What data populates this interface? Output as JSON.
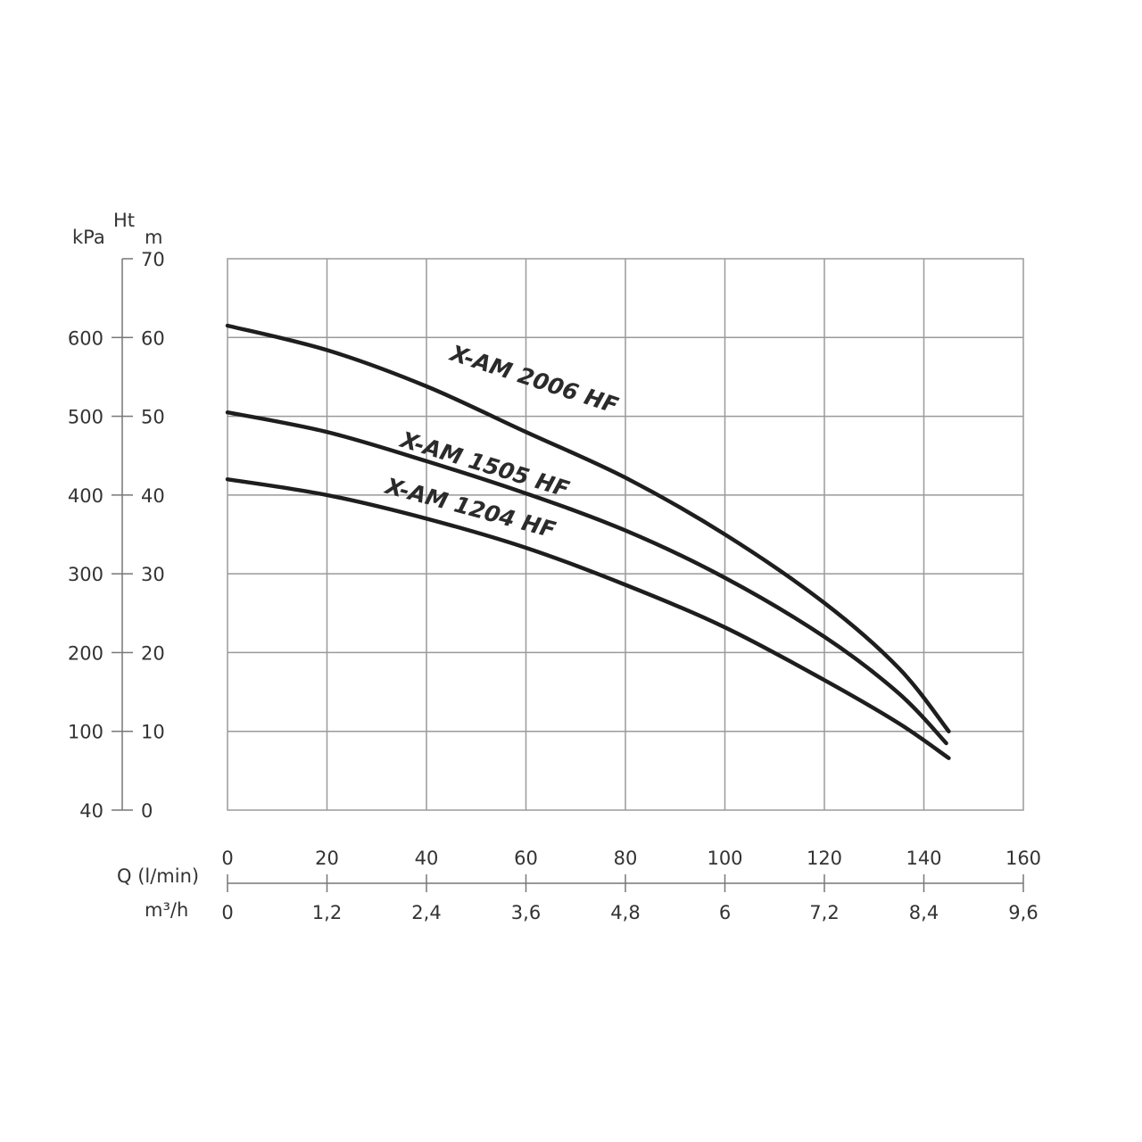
{
  "chart_data": {
    "type": "line",
    "title": "",
    "axis_labels": {
      "kpa": "kPa",
      "ht": "Ht",
      "m": "m",
      "q_lmin": "Q (l/min)",
      "m3h": "m³/h"
    },
    "m_ticks": [
      "0",
      "10",
      "20",
      "30",
      "40",
      "50",
      "60",
      "70"
    ],
    "kpa_ticks": [
      "40",
      "100",
      "200",
      "300",
      "400",
      "500",
      "600"
    ],
    "q_ticks": [
      "0",
      "20",
      "40",
      "60",
      "80",
      "100",
      "120",
      "140",
      "160"
    ],
    "m3h_ticks": [
      "0",
      "1,2",
      "2,4",
      "3,6",
      "4,8",
      "6",
      "7,2",
      "8,4",
      "9,6"
    ],
    "xlim": [
      0,
      160
    ],
    "ylim": [
      0,
      70
    ],
    "grid": true,
    "series": [
      {
        "name": "X-AM 2006 HF",
        "points": [
          [
            0,
            61.5
          ],
          [
            20,
            58.4
          ],
          [
            40,
            53.8
          ],
          [
            60,
            48.0
          ],
          [
            80,
            42.2
          ],
          [
            100,
            35.0
          ],
          [
            120,
            26.3
          ],
          [
            135,
            18.0
          ],
          [
            145,
            10.0
          ]
        ]
      },
      {
        "name": "X-AM 1505 HF",
        "points": [
          [
            0,
            50.5
          ],
          [
            20,
            48.0
          ],
          [
            40,
            44.3
          ],
          [
            60,
            40.2
          ],
          [
            80,
            35.5
          ],
          [
            100,
            29.5
          ],
          [
            120,
            22.0
          ],
          [
            135,
            14.8
          ],
          [
            144.5,
            8.5
          ]
        ]
      },
      {
        "name": "X-AM 1204 HF",
        "points": [
          [
            0,
            42.0
          ],
          [
            20,
            40.0
          ],
          [
            40,
            37.0
          ],
          [
            60,
            33.3
          ],
          [
            80,
            28.6
          ],
          [
            100,
            23.2
          ],
          [
            120,
            16.5
          ],
          [
            135,
            11.0
          ],
          [
            145,
            6.6
          ]
        ]
      }
    ]
  }
}
